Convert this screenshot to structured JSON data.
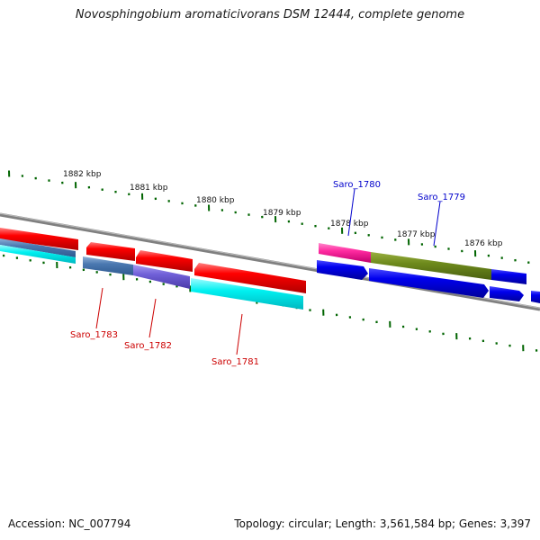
{
  "title": "Novosphingobium aromaticivorans DSM 12444, complete genome",
  "footer": {
    "accession": "Accession: NC_007794",
    "summary": "Topology: circular; Length: 3,561,584 bp; Genes: 3,397"
  },
  "colors": {
    "backbone": "#808080",
    "tick": "#006400",
    "label_forward": "#0000cc",
    "label_reverse": "#cc0000"
  },
  "tick_labels": [
    "1882 kbp",
    "1881 kbp",
    "1880 kbp",
    "1879 kbp",
    "1878 kbp",
    "1877 kbp",
    "1876 kbp"
  ],
  "genes": [
    {
      "label": "Saro_1780",
      "strand": "+",
      "color": "#0000cc"
    },
    {
      "label": "Saro_1779",
      "strand": "+",
      "color": "#0000cc"
    },
    {
      "label": "Saro_1783",
      "strand": "-",
      "color": "#cc0000"
    },
    {
      "label": "Saro_1782",
      "strand": "-",
      "color": "#cc0000"
    },
    {
      "label": "Saro_1781",
      "strand": "-",
      "color": "#cc0000"
    }
  ]
}
